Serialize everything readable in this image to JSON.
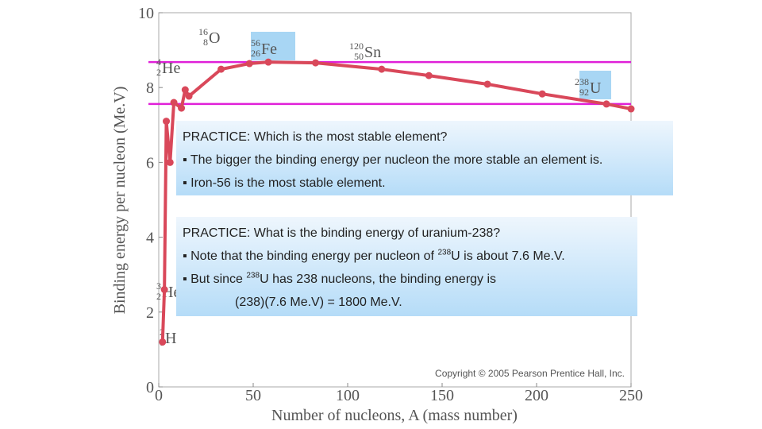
{
  "chart_data": {
    "type": "line",
    "xlabel": "Number of nucleons, A (mass number)",
    "ylabel": "Binding energy per nucleon (Me.V)",
    "x": [
      2,
      3,
      4,
      6,
      8,
      12,
      14,
      16,
      33,
      48,
      58,
      83,
      118,
      143,
      174,
      203,
      237,
      250
    ],
    "series": [
      {
        "color": "#d9485a",
        "values": [
          1.2,
          2.6,
          7.1,
          6.0,
          7.6,
          7.45,
          7.94,
          7.77,
          8.49,
          8.64,
          8.68,
          8.66,
          8.49,
          8.32,
          8.09,
          7.83,
          7.56,
          7.43
        ]
      }
    ],
    "xlim": [
      0,
      250
    ],
    "ylim": [
      0,
      10
    ],
    "xticks": [
      0,
      50,
      100,
      150,
      200,
      250
    ],
    "yticks": [
      0,
      2,
      4,
      6,
      8,
      10
    ],
    "reference_lines": {
      "color": "#e020d8",
      "values": [
        8.68,
        7.56
      ]
    },
    "annotations": [
      {
        "mass": "16",
        "z": "8",
        "symbol": "O"
      },
      {
        "mass": "56",
        "z": "26",
        "symbol": "Fe"
      },
      {
        "mass": "120",
        "z": "50",
        "symbol": "Sn"
      },
      {
        "mass": "4",
        "z": "2",
        "symbol": "He"
      },
      {
        "mass": "238",
        "z": "92",
        "symbol": "U"
      },
      {
        "mass": "3",
        "z": "2",
        "symbol": "He"
      },
      {
        "mass": "2",
        "z": "1",
        "symbol": "H"
      }
    ],
    "copyright": "Copyright © 2005 Pearson Prentice Hall, Inc."
  },
  "boxes": [
    {
      "lines": [
        {
          "pre": "PRACTICE:  Which is the most stable element?"
        },
        {
          "pre": "▪ The bigger the binding energy per nucleon the more stable an element is."
        },
        {
          "pre": "▪ Iron-56 is the most stable element."
        }
      ]
    },
    {
      "lines": [
        {
          "pre": "PRACTICE:  What is the binding energy of uranium-238?"
        },
        {
          "pre": "▪ Note that the binding energy per nucleon of ",
          "sup": "238",
          "post": "U is about 7.6 Me.V."
        },
        {
          "pre": "▪ But since ",
          "sup": "238",
          "post": "U has 238 nucleons, the binding energy is"
        },
        {
          "pre": "(238)(7.6 Me.V) = 1800 Me.V."
        }
      ]
    }
  ]
}
